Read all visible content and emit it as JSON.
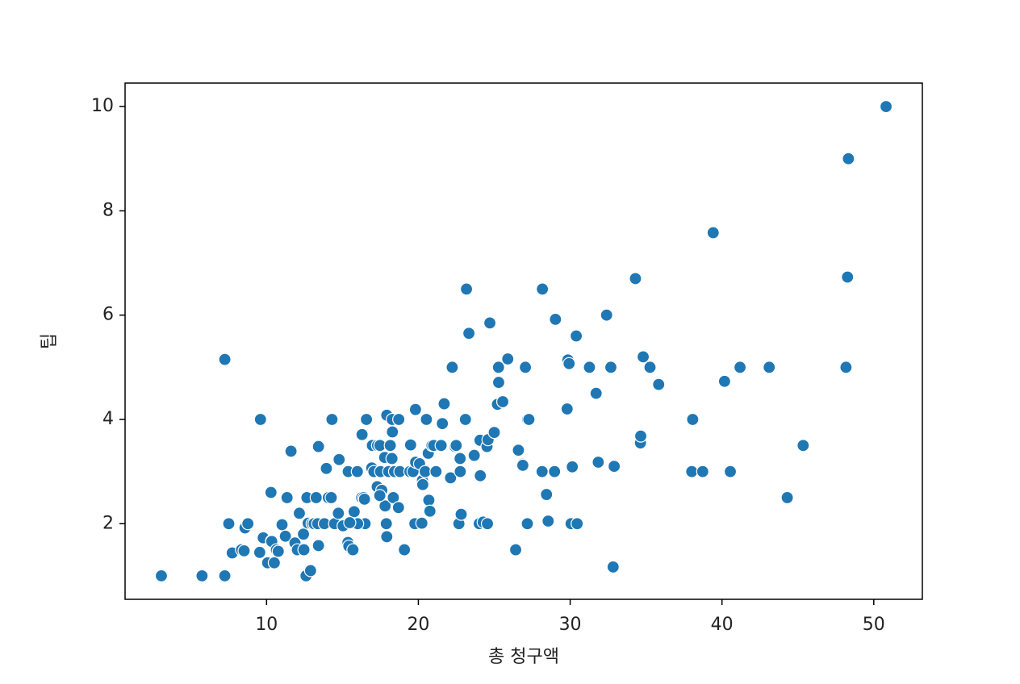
{
  "chart_data": {
    "type": "scatter",
    "xlabel": "총 청구액",
    "ylabel": "팁",
    "color": "#1f77b4",
    "x": [
      3.07,
      5.75,
      7.25,
      7.25,
      7.74,
      7.51,
      8.35,
      8.52,
      8.58,
      8.77,
      9.55,
      9.6,
      9.78,
      10.07,
      10.29,
      10.33,
      10.34,
      10.51,
      10.65,
      10.77,
      11.02,
      11.24,
      11.35,
      11.61,
      11.87,
      12.03,
      12.16,
      12.43,
      12.46,
      12.6,
      12.66,
      12.74,
      12.9,
      13.0,
      13.13,
      13.27,
      13.37,
      13.42,
      13.42,
      13.81,
      14.07,
      14.26,
      14.31,
      14.48,
      14.78,
      15.04,
      15.36,
      15.38,
      15.42,
      15.69,
      15.77,
      15.98,
      16.27,
      16.29,
      16.4,
      16.45,
      16.49,
      16.58,
      16.93,
      16.97,
      17.07,
      17.29,
      17.31,
      17.47,
      17.51,
      17.59,
      17.78,
      17.81,
      17.89,
      17.92,
      17.92,
      18.04,
      18.15,
      18.24,
      18.26,
      18.28,
      18.29,
      18.35,
      18.43,
      18.69,
      18.71,
      18.78,
      19.08,
      19.44,
      19.49,
      19.65,
      19.77,
      19.81,
      19.82,
      20.08,
      20.23,
      20.27,
      20.29,
      20.45,
      20.53,
      20.65,
      20.69,
      20.76,
      20.9,
      21.01,
      21.16,
      21.5,
      21.58,
      21.7,
      22.12,
      22.23,
      22.42,
      22.49,
      22.67,
      22.75,
      22.76,
      23.1,
      23.17,
      23.33,
      23.68,
      24.01,
      24.06,
      24.08,
      24.27,
      24.52,
      24.55,
      24.59,
      24.71,
      25.0,
      25.21,
      25.28,
      25.29,
      25.56,
      25.89,
      26.41,
      26.59,
      26.86,
      26.88,
      27.05,
      27.18,
      27.2,
      27.28,
      28.15,
      28.17,
      28.44,
      28.55,
      28.97,
      29.03,
      29.8,
      29.85,
      29.93,
      30.06,
      30.14,
      30.4,
      30.46,
      31.27,
      31.71,
      31.85,
      32.4,
      32.68,
      32.83,
      32.9,
      34.3,
      34.63,
      34.65,
      34.81,
      35.26,
      35.83,
      38.01,
      38.07,
      38.73,
      39.42,
      40.17,
      40.55,
      41.19,
      43.11,
      44.3,
      45.35,
      48.17,
      48.27,
      48.33,
      50.81,
      17.46,
      13.94,
      14.73,
      16.0,
      15.48,
      22.82
    ],
    "values": [
      1,
      1,
      1,
      5.15,
      1.44,
      2,
      1.5,
      1.48,
      1.92,
      2,
      1.45,
      4,
      1.73,
      1.25,
      2.6,
      1.67,
      1.66,
      1.25,
      1.5,
      1.47,
      1.98,
      1.76,
      2.5,
      3.39,
      1.63,
      1.5,
      2.2,
      1.8,
      1.5,
      1,
      2.5,
      2.01,
      1.1,
      2,
      2,
      2.5,
      2,
      3.48,
      1.58,
      2,
      2.5,
      2.5,
      4,
      2,
      3.23,
      1.96,
      1.64,
      3,
      1.57,
      1.5,
      2.23,
      3,
      2.5,
      3.71,
      2.5,
      2.47,
      2,
      4,
      3.07,
      3.5,
      3,
      2.71,
      3.5,
      3.5,
      3,
      2.64,
      3.27,
      2.34,
      2,
      4.08,
      1.75,
      3,
      3.5,
      3.76,
      3.25,
      4,
      3.76,
      2.5,
      3,
      2.31,
      4,
      3,
      1.5,
      3,
      3.51,
      3,
      2,
      4.19,
      3.18,
      3.15,
      2.01,
      2.83,
      2.75,
      3,
      4,
      3.35,
      2.45,
      2.24,
      3.5,
      3.5,
      3,
      3.5,
      3.92,
      4.3,
      2.88,
      5,
      3.48,
      3.5,
      2,
      3.25,
      3,
      4,
      6.5,
      5.65,
      3.31,
      2,
      3.6,
      2.92,
      2.03,
      3.48,
      2,
      3.61,
      5.85,
      3.75,
      4.29,
      5,
      4.71,
      4.34,
      5.16,
      1.5,
      3.41,
      3.14,
      3.12,
      5,
      2,
      4,
      4,
      3,
      6.5,
      2.56,
      2.05,
      3,
      5.92,
      4.2,
      5.14,
      5.07,
      2,
      3.09,
      5.6,
      2,
      5,
      4.5,
      3.18,
      6,
      5,
      1.17,
      3.1,
      6.7,
      3.55,
      3.68,
      5.2,
      5,
      4.67,
      3,
      4,
      3,
      7.58,
      4.73,
      3,
      5,
      5,
      2.5,
      3.5,
      5,
      6.73,
      9,
      10,
      2.54,
      3.06,
      2.2,
      2,
      2.02,
      2.18
    ],
    "xlim": [
      0.68,
      53.2
    ],
    "ylim": [
      0.55,
      10.45
    ],
    "xticks": [
      10,
      20,
      30,
      40,
      50
    ],
    "yticks": [
      2,
      4,
      6,
      8,
      10
    ]
  }
}
